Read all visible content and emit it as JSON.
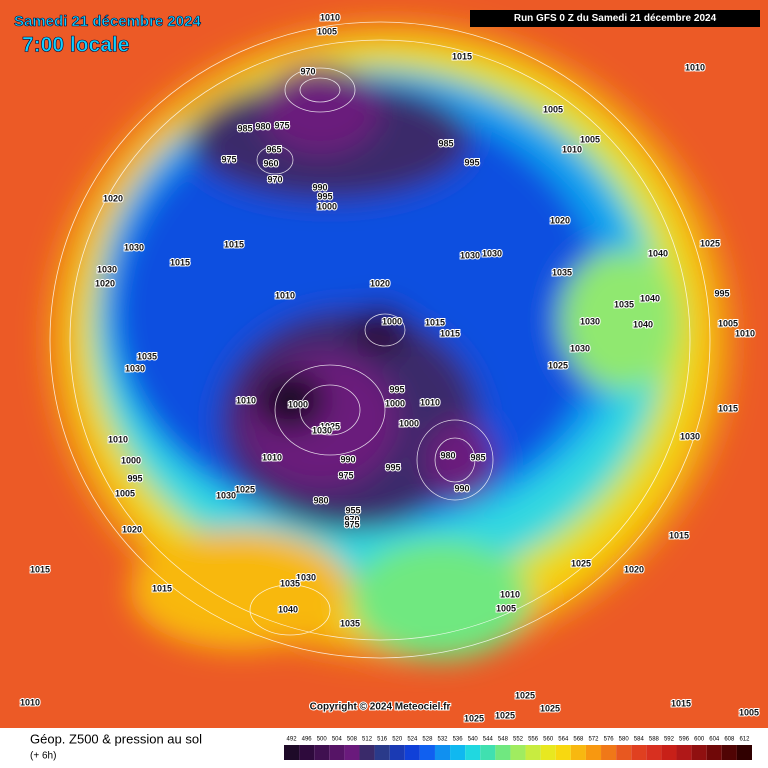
{
  "header": {
    "date": "Samedi 21 décembre 2024",
    "time": "7:00 locale",
    "run": "Run GFS 0 Z du Samedi 21 décembre 2024"
  },
  "copyright": "Copyright © 2024 Meteociel.fr",
  "footer": {
    "title": "Géop. Z500 & pression au sol",
    "lead": "(+ 6h)"
  },
  "colorbar": {
    "values": [
      492,
      496,
      500,
      504,
      508,
      512,
      516,
      520,
      524,
      528,
      532,
      536,
      540,
      544,
      548,
      552,
      556,
      560,
      564,
      568,
      572,
      576,
      580,
      584,
      588,
      592,
      596,
      600,
      604,
      608,
      612
    ],
    "colors": [
      "#1e0a28",
      "#2e0a3c",
      "#401050",
      "#561466",
      "#6a1a7c",
      "#3a2a6a",
      "#2a3a8a",
      "#1a3ab4",
      "#1040d8",
      "#1060f0",
      "#1090f0",
      "#10b8f0",
      "#20d8e0",
      "#40e0b0",
      "#70e880",
      "#a0ec60",
      "#c8ec40",
      "#e8e820",
      "#f8d810",
      "#f8b810",
      "#f89810",
      "#f07818",
      "#e85820",
      "#e04020",
      "#d83020",
      "#c82018",
      "#b01818",
      "#901010",
      "#700808",
      "#500404",
      "#300000"
    ]
  },
  "isobar_labels": [
    1010,
    1005,
    1015,
    1010,
    970,
    985,
    980,
    975,
    965,
    960,
    975,
    970,
    985,
    995,
    1005,
    1005,
    1010,
    990,
    995,
    1000,
    1020,
    1020,
    1025,
    1030,
    1015,
    1015,
    1030,
    1020,
    1030,
    1030,
    1035,
    1040,
    1010,
    1020,
    995,
    1040,
    1035,
    1000,
    1015,
    1015,
    1030,
    1040,
    1005,
    1010,
    1035,
    1030,
    1030,
    1025,
    995,
    1000,
    1010,
    1010,
    1000,
    1025,
    1030,
    1000,
    1015,
    1030,
    1010,
    1000,
    995,
    1005,
    980,
    985,
    995,
    990,
    975,
    990,
    1010,
    1025,
    1030,
    980,
    955,
    970,
    975,
    1020,
    1015,
    1015,
    1025,
    1020,
    1030,
    1035,
    1015,
    1010,
    1005,
    1040,
    1035,
    1025,
    1025,
    1015,
    1010,
    1005,
    1025,
    1025
  ]
}
